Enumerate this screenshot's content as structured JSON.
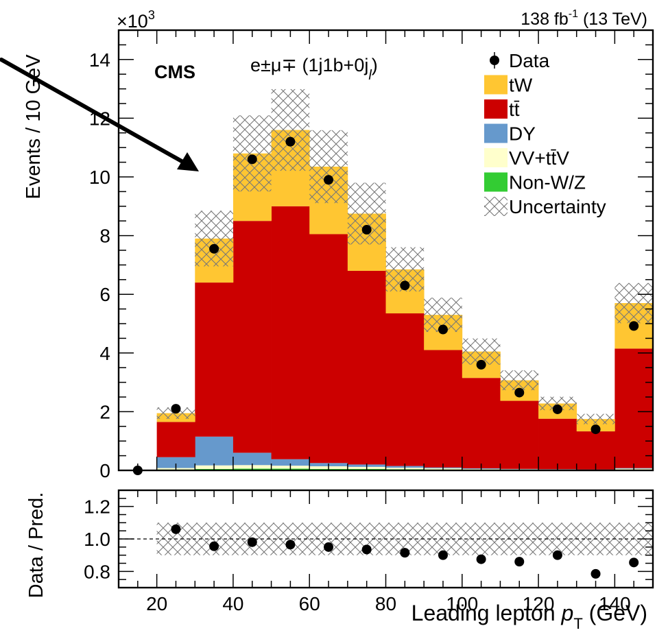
{
  "chart_data": [
    {
      "type": "bar",
      "stacked": true,
      "experiment": "CMS",
      "lumi_label": "138 fb",
      "lumi_sup": "-1",
      "energy_label": " (13 TeV)",
      "y_multiplier_base": "×10",
      "y_multiplier_exp": "3",
      "channel_label": "e±μ∓ (1j1b+0j",
      "channel_sub": "l",
      "channel_close": ")",
      "ylabel": "Events / 10 GeV",
      "ylim": [
        0,
        15
      ],
      "xlim": [
        10,
        150
      ],
      "x_ticks": [
        20,
        40,
        60,
        80,
        100,
        120,
        140
      ],
      "y_ticks": [
        0,
        2,
        4,
        6,
        8,
        10,
        12,
        14
      ],
      "bin_edges": [
        10,
        20,
        30,
        40,
        50,
        60,
        70,
        80,
        90,
        100,
        110,
        120,
        130,
        140,
        150
      ],
      "bin_centers": [
        15,
        25,
        35,
        45,
        55,
        65,
        75,
        85,
        95,
        105,
        115,
        125,
        135,
        145
      ],
      "series": [
        {
          "name": "Non-W/Z",
          "color": "#33cc33",
          "values": [
            0,
            0.03,
            0.05,
            0.06,
            0.06,
            0.05,
            0.05,
            0.04,
            0.03,
            0.02,
            0.02,
            0.01,
            0.01,
            0.02
          ]
        },
        {
          "name": "VV+tt̄V",
          "color": "#ffffcc",
          "values": [
            0,
            0.05,
            0.12,
            0.12,
            0.1,
            0.09,
            0.07,
            0.05,
            0.04,
            0.03,
            0.02,
            0.02,
            0.01,
            0.04
          ]
        },
        {
          "name": "DY",
          "color": "#6699cc",
          "values": [
            0,
            0.37,
            0.98,
            0.42,
            0.22,
            0.11,
            0.08,
            0.06,
            0.03,
            0.02,
            0.01,
            0.01,
            0.01,
            0.02
          ]
        },
        {
          "name": "tt̄",
          "color": "#cc0000",
          "values": [
            0,
            1.2,
            5.25,
            7.9,
            8.62,
            7.8,
            6.6,
            5.2,
            4.0,
            3.08,
            2.32,
            1.72,
            1.3,
            4.07
          ]
        },
        {
          "name": "tW",
          "color": "#ffc632",
          "values": [
            0,
            0.3,
            1.5,
            2.3,
            2.6,
            2.3,
            1.95,
            1.5,
            1.2,
            0.9,
            0.7,
            0.52,
            0.42,
            1.55
          ]
        }
      ],
      "uncertainty": {
        "name": "Uncertainty",
        "band_fraction": [
          0,
          0.1,
          0.12,
          0.12,
          0.12,
          0.12,
          0.12,
          0.11,
          0.11,
          0.11,
          0.11,
          0.1,
          0.1,
          0.12
        ]
      },
      "data": {
        "name": "Data",
        "values": [
          0.0,
          2.1,
          7.55,
          10.6,
          11.2,
          9.9,
          8.2,
          6.3,
          4.8,
          3.6,
          2.65,
          2.08,
          1.4,
          4.92
        ]
      },
      "legend": {
        "position": "top-right",
        "order": [
          "Data",
          "tW",
          "tt̄",
          "DY",
          "VV+tt̄V",
          "Non-W/Z",
          "Uncertainty"
        ]
      }
    },
    {
      "type": "scatter",
      "ylabel": "Data / Pred.",
      "xlabel_main": "Leading lepton ",
      "xlabel_var": "p",
      "xlabel_sub": "T",
      "xlabel_unit": " (GeV)",
      "ylim": [
        0.7,
        1.3
      ],
      "y_ticks": [
        0.8,
        1.0,
        1.2
      ],
      "y_tick_labels": [
        "0.8",
        "1.0",
        "1.2"
      ],
      "reference_line": 1.0,
      "x": [
        25,
        35,
        45,
        55,
        65,
        75,
        85,
        95,
        105,
        115,
        125,
        135,
        145
      ],
      "ratio": [
        1.06,
        0.955,
        0.98,
        0.965,
        0.95,
        0.935,
        0.915,
        0.9,
        0.875,
        0.86,
        0.9,
        0.785,
        0.855
      ],
      "band": {
        "x_range": [
          20,
          150
        ],
        "half_width": 0.1
      }
    }
  ],
  "annotation": {
    "type": "arrow",
    "color": "#000000"
  }
}
